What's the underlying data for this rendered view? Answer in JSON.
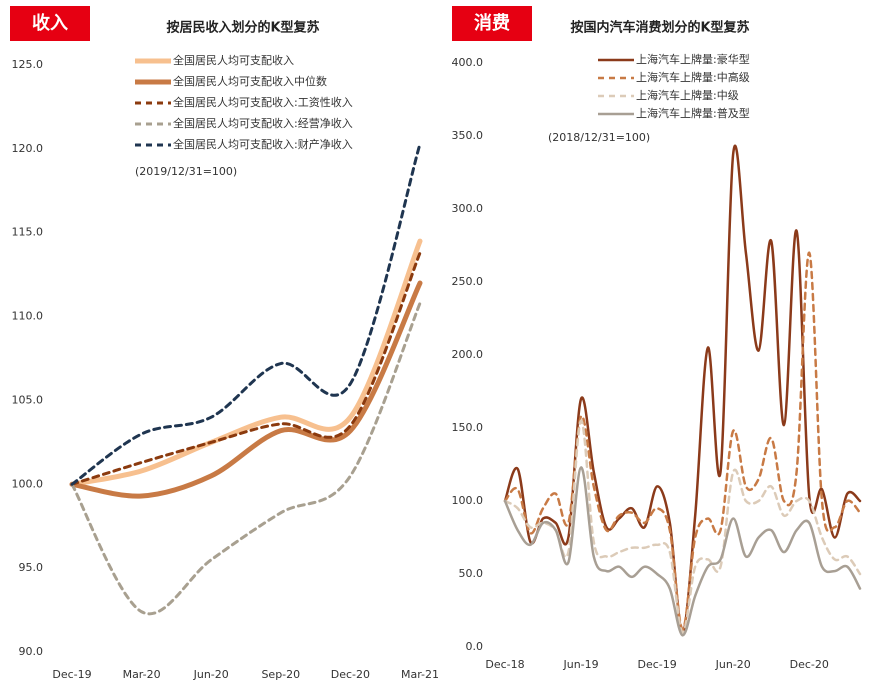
{
  "chart_data": [
    {
      "type": "line",
      "tag": "收入",
      "title": "按居民收入划分的K型复苏",
      "note": "(2019/12/31=100)",
      "categories": [
        "Dec-19",
        "Mar-20",
        "Jun-20",
        "Sep-20",
        "Dec-20",
        "Mar-21"
      ],
      "ylim": [
        90,
        125
      ],
      "yticks": [
        {
          "value": 90,
          "label": "90.0"
        },
        {
          "value": 95,
          "label": "95.0"
        },
        {
          "value": 100,
          "label": "100.0"
        },
        {
          "value": 105,
          "label": "105.0"
        },
        {
          "value": 110,
          "label": "110.0"
        },
        {
          "value": 115,
          "label": "115.0"
        },
        {
          "value": 120,
          "label": "120.0"
        },
        {
          "value": 125,
          "label": "125.0"
        }
      ],
      "series": [
        {
          "name": "全国居民人均可支配收入",
          "color": "#f7c08f",
          "width": 5,
          "dash": false,
          "values": [
            100,
            100.8,
            102.5,
            104,
            104,
            114.5
          ]
        },
        {
          "name": "全国居民人均可支配收入中位数",
          "color": "#c87a45",
          "width": 5,
          "dash": false,
          "values": [
            100,
            99.3,
            100.5,
            103.2,
            103.2,
            112
          ]
        },
        {
          "name": "全国居民人均可支配收入:工资性收入",
          "color": "#8b3a0e",
          "width": 3,
          "dash": true,
          "values": [
            100,
            101.3,
            102.5,
            103.6,
            103.5,
            113.8
          ]
        },
        {
          "name": "全国居民人均可支配收入:经营净收入",
          "color": "#a8a090",
          "width": 3,
          "dash": true,
          "values": [
            100,
            92.4,
            95.5,
            98.3,
            100.5,
            110.8
          ]
        },
        {
          "name": "全国居民人均可支配收入:财产净收入",
          "color": "#1f3550",
          "width": 3,
          "dash": true,
          "values": [
            100,
            103,
            104,
            107.2,
            106,
            120.3
          ]
        }
      ]
    },
    {
      "type": "line",
      "tag": "消费",
      "title": "按国内汽车消费划分的K型复苏",
      "note": "(2018/12/31=100)",
      "categories": [
        "Dec-18",
        null,
        null,
        null,
        null,
        null,
        "Jun-19",
        null,
        null,
        null,
        null,
        null,
        "Dec-19",
        null,
        null,
        null,
        null,
        null,
        "Jun-20",
        null,
        null,
        null,
        null,
        null,
        "Dec-20",
        null,
        null,
        null,
        null
      ],
      "ylim": [
        0,
        400
      ],
      "yticks": [
        {
          "value": 0,
          "label": "0.0"
        },
        {
          "value": 50,
          "label": "50.0"
        },
        {
          "value": 100,
          "label": "100.0"
        },
        {
          "value": 150,
          "label": "150.0"
        },
        {
          "value": 200,
          "label": "200.0"
        },
        {
          "value": 250,
          "label": "250.0"
        },
        {
          "value": 300,
          "label": "300.0"
        },
        {
          "value": 350,
          "label": "350.0"
        },
        {
          "value": 400,
          "label": "400.0"
        }
      ],
      "series": [
        {
          "name": "上海汽车上牌量:豪华型",
          "color": "#8b3a1a",
          "width": 2.5,
          "dash": false,
          "values": [
            100,
            122,
            72,
            88,
            85,
            75,
            170,
            120,
            82,
            88,
            95,
            82,
            110,
            85,
            10,
            90,
            205,
            120,
            338,
            270,
            203,
            278,
            152,
            285,
            103,
            108,
            75,
            105,
            100
          ]
        },
        {
          "name": "上海汽车上牌量:中高级",
          "color": "#c87a45",
          "width": 2.5,
          "dash": true,
          "values": [
            100,
            108,
            78,
            95,
            105,
            85,
            158,
            110,
            80,
            90,
            92,
            85,
            95,
            80,
            12,
            75,
            88,
            80,
            148,
            110,
            115,
            143,
            100,
            120,
            270,
            100,
            82,
            100,
            92
          ]
        },
        {
          "name": "上海汽车上牌量:中级",
          "color": "#dccbb8",
          "width": 2.5,
          "dash": true,
          "values": [
            100,
            95,
            82,
            85,
            80,
            65,
            155,
            72,
            62,
            65,
            68,
            68,
            70,
            65,
            10,
            55,
            60,
            55,
            120,
            100,
            100,
            110,
            90,
            100,
            100,
            75,
            60,
            62,
            50
          ]
        },
        {
          "name": "上海汽车上牌量:普及型",
          "color": "#a89f94",
          "width": 2.5,
          "dash": false,
          "values": [
            100,
            80,
            70,
            85,
            80,
            58,
            123,
            62,
            52,
            55,
            48,
            55,
            50,
            40,
            8,
            35,
            55,
            60,
            88,
            62,
            75,
            80,
            65,
            80,
            85,
            55,
            52,
            55,
            40
          ]
        }
      ]
    }
  ]
}
